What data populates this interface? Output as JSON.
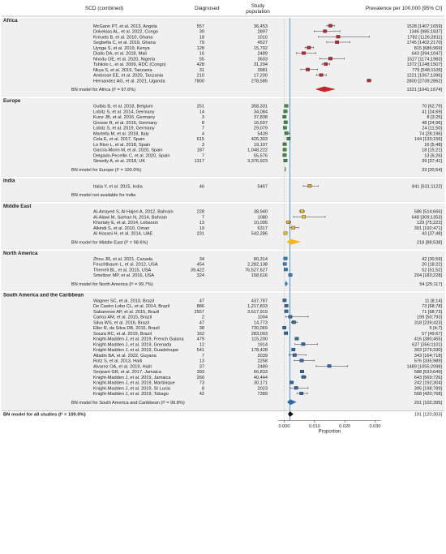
{
  "header": {
    "col_study": "SCD (combined)",
    "col_diagnosed": "Diagnosed",
    "col_population": "Study population",
    "col_prevalence": "Prevalence per 100,000 [95% CI]"
  },
  "colors": {
    "Africa": "#c0272d",
    "Europe": "#3a8f3a",
    "India": "#e39b2d",
    "Middle East": "#f2b61d",
    "North America": "#2e7fc0",
    "South America and the Caribbean": "#2b6aa8",
    "overall": "#111111",
    "reference_line": "#3b8fd9",
    "shade": "#f0f0f0"
  },
  "chart_data": {
    "type": "forest",
    "xlabel": "Proportion",
    "xlim": [
      -0.002,
      0.032
    ],
    "xticks": [
      0.0,
      0.01,
      0.02,
      0.03
    ],
    "xtick_labels": [
      "0.000",
      "0.010",
      "0.020",
      "0.030"
    ],
    "reference_value": 0.00191,
    "groups": [
      {
        "name": "Africa",
        "studies": [
          {
            "label": "McGann PT, et al. 2013, Angola",
            "diagnosed": "557",
            "population": "36,453",
            "prev": 1528,
            "lo": 1407,
            "hi": 1659,
            "text": "1528 [1407;1659]"
          },
          {
            "label": "Dokekias AL, et al. 2022, Congo",
            "diagnosed": "39",
            "population": "2897",
            "prev": 1346,
            "lo": 985,
            "hi": 1837,
            "text": "1346 [985;1837]"
          },
          {
            "label": "Kreuels B, et al. 2010, Ghana",
            "diagnosed": "18",
            "population": "1010",
            "prev": 1782,
            "lo": 1126,
            "hi": 2811,
            "text": "1782 [1126;2811]"
          },
          {
            "label": "Segbefia C, et al. 2019, Ghana",
            "diagnosed": "79",
            "population": "4527",
            "prev": 1745,
            "lo": 1402,
            "hi": 2170,
            "text": "1745 [1402;2170]"
          },
          {
            "label": "Uyoga S, et al. 2019, Kenya",
            "diagnosed": "128",
            "population": "15,702",
            "prev": 815,
            "lo": 686,
            "hi": 969,
            "text": "815 [686;969]"
          },
          {
            "label": "Diallo DA, et al. 2018, Mali",
            "diagnosed": "16",
            "population": "2489",
            "prev": 643,
            "lo": 394,
            "hi": 1047,
            "text": "643 [394;1047]"
          },
          {
            "label": "Nnodu OE, et al. 2020, Nigeria",
            "diagnosed": "55",
            "population": "3603",
            "prev": 1527,
            "lo": 1174,
            "hi": 1983,
            "text": "1527 [1174;1983]"
          },
          {
            "label": "Tshilolo L, et al. 2009, RDC (Congo)",
            "diagnosed": "428",
            "population": "31,204",
            "prev": 1372,
            "lo": 1248,
            "hi": 1507,
            "text": "1372 [1248;1507]"
          },
          {
            "label": "Nkya S, et al. 2019, Tanzania",
            "diagnosed": "31",
            "population": "3981",
            "prev": 779,
            "lo": 548,
            "hi": 1105,
            "text": "779 [548;1105]"
          },
          {
            "label": "Ambrose EE, et al. 2020, Tanzania",
            "diagnosed": "210",
            "population": "17,200",
            "prev": 1221,
            "lo": 1067,
            "hi": 1396,
            "text": "1221 [1067;1396]"
          },
          {
            "label": "Hernandez AG, et al. 2021, Uganda",
            "diagnosed": "7800",
            "population": "278,585",
            "prev": 2800,
            "lo": 2739,
            "hi": 2862,
            "text": "2800 [2739;2862]"
          }
        ],
        "summary": {
          "label": "BN model for Africa (I² = 97.6%)",
          "prev": 1321,
          "lo": 1041,
          "hi": 1674,
          "text": "1321 [1041;1674]"
        }
      },
      {
        "name": "Europe",
        "studies": [
          {
            "label": "Gulbis B, et al. 2018, Belgium",
            "diagnosed": "251",
            "population": "358,331",
            "prev": 70,
            "lo": 62,
            "hi": 79,
            "text": "70 [62;79]"
          },
          {
            "label": "Lobitz S, et al. 2014, Germany",
            "diagnosed": "14",
            "population": "34,084",
            "prev": 41,
            "lo": 24,
            "hi": 69,
            "text": "41 [24;69]"
          },
          {
            "label": "Kunz JB, et al. 2016, Germany",
            "diagnosed": "3",
            "population": "37,838",
            "prev": 8,
            "lo": 3,
            "hi": 25,
            "text": "8 [3;25]"
          },
          {
            "label": "Grosse R, et al. 2016, Germany",
            "diagnosed": "8",
            "population": "16,697",
            "prev": 48,
            "lo": 24,
            "hi": 96,
            "text": "48 [24;96]"
          },
          {
            "label": "Lobitz S, et al. 2019, Germany",
            "diagnosed": "7",
            "population": "29,079",
            "prev": 24,
            "lo": 11,
            "hi": 50,
            "text": "24 [11;50]"
          },
          {
            "label": "Martella M, et al. 2018, Italy",
            "diagnosed": "4",
            "population": "5439",
            "prev": 74,
            "lo": 28,
            "hi": 196,
            "text": "74 [28;196]"
          },
          {
            "label": "Cela E, et al. 2017, Spain",
            "diagnosed": "615",
            "population": "426,303",
            "prev": 144,
            "lo": 133,
            "hi": 156,
            "text": "144 [133;156]"
          },
          {
            "label": "Lo Riso L, et al. 2018, Spain",
            "diagnosed": "3",
            "population": "19,197",
            "prev": 16,
            "lo": 5,
            "hi": 48,
            "text": "16 [5;48]"
          },
          {
            "label": "García-Morin M, et al. 2020, Spain",
            "diagnosed": "187",
            "population": "1,048,222",
            "prev": 18,
            "lo": 15,
            "hi": 21,
            "text": "18 [15;21]"
          },
          {
            "label": "Delgado-Pecellin C, et al. 2020, Spain",
            "diagnosed": "7",
            "population": "55,576",
            "prev": 13,
            "lo": 6,
            "hi": 26,
            "text": "13 [6;26]"
          },
          {
            "label": "Streetly A, et al. 2018, UK",
            "diagnosed": "1317",
            "population": "3,376,923",
            "prev": 39,
            "lo": 37,
            "hi": 41,
            "text": "39 [37;41]"
          }
        ],
        "summary": {
          "label": "BN model for Europe (I² = 100.0%)",
          "prev": 33,
          "lo": 20,
          "hi": 54,
          "text": "33 [20;54]"
        }
      },
      {
        "name": "India",
        "studies": [
          {
            "label": "Italia Y, et al. 2015, India",
            "diagnosed": "46",
            "population": "5467",
            "prev": 841,
            "lo": 631,
            "hi": 1122,
            "text": "841 [631;1122]"
          }
        ],
        "summary": {
          "label": "BN model not available for India",
          "prev": null,
          "lo": null,
          "hi": null,
          "text": ""
        }
      },
      {
        "name": "Middle East",
        "studies": [
          {
            "label": "Al-Arrayed S, Al Hajeri A, 2012, Bahrain",
            "diagnosed": "228",
            "population": "38,940",
            "prev": 586,
            "lo": 514,
            "hi": 666,
            "text": "586 [514;666]"
          },
          {
            "label": "Al-Alawi M, Sarhan N, 2014, Bahrain",
            "diagnosed": "7",
            "population": "1080",
            "prev": 648,
            "lo": 309,
            "hi": 1353,
            "text": "648 [309;1353]"
          },
          {
            "label": "Khoriaty E, et al. 2014, Lebanon",
            "diagnosed": "13",
            "population": "10,095",
            "prev": 129,
            "lo": 75,
            "hi": 222,
            "text": "129 [75;222]"
          },
          {
            "label": "Alkindi S, et al. 2010, Oman",
            "diagnosed": "19",
            "population": "6317",
            "prev": 301,
            "lo": 192,
            "hi": 471,
            "text": "301 [192;471]"
          },
          {
            "label": "Al Hosani H, et al. 2014, UAE",
            "diagnosed": "231",
            "population": "542,286",
            "prev": 43,
            "lo": 37,
            "hi": 48,
            "text": "43 [37;48]"
          }
        ],
        "summary": {
          "label": "BN model for Middle East (I² = 98.6%)",
          "prev": 218,
          "lo": 88,
          "hi": 538,
          "text": "218 [88;538]"
        }
      },
      {
        "name": "North America",
        "studies": [
          {
            "label": "Zhou JR, et al. 2021, Canada",
            "diagnosed": "34",
            "population": "80,314",
            "prev": 42,
            "lo": 30,
            "hi": 59,
            "text": "42 [30;59]"
          },
          {
            "label": "Feuchtbaum L, et al. 2012, USA",
            "diagnosed": "454",
            "population": "2,282,138",
            "prev": 20,
            "lo": 18,
            "hi": 22,
            "text": "20 [18;22]"
          },
          {
            "label": "Therrell BL, et al. 2015, USA",
            "diagnosed": "39,422",
            "population": "76,527,627",
            "prev": 52,
            "lo": 51,
            "hi": 52,
            "text": "52 [51;52]"
          },
          {
            "label": "Smeltzer MP, et al. 2016, USA",
            "diagnosed": "324",
            "population": "158,616",
            "prev": 204,
            "lo": 183,
            "hi": 228,
            "text": "204 [183;228]"
          }
        ],
        "summary": {
          "label": "BN model for North America (I² = 99.7%)",
          "prev": 54,
          "lo": 25,
          "hi": 117,
          "text": "54 [25;117]"
        }
      },
      {
        "name": "South America and the Caribbean",
        "studies": [
          {
            "label": "Wagner SC, et al. 2010, Brazil",
            "diagnosed": "47",
            "population": "437,787",
            "prev": 11,
            "lo": 8,
            "hi": 14,
            "text": "11 [8;14]"
          },
          {
            "label": "De Castro Lobo CL, et al. 2014, Brazil",
            "diagnosed": "886",
            "population": "1,217,833",
            "prev": 73,
            "lo": 68,
            "hi": 78,
            "text": "73 [68;78]"
          },
          {
            "label": "Sabarense AP, et al. 2015, Brazil",
            "diagnosed": "2557",
            "population": "3,617,919",
            "prev": 71,
            "lo": 68,
            "hi": 73,
            "text": "71 [68;73]"
          },
          {
            "label": "Carlos AM, et al. 2015, Brazil",
            "diagnosed": "2",
            "population": "1004",
            "prev": 199,
            "lo": 50,
            "hi": 793,
            "text": "199 [50;793]"
          },
          {
            "label": "Silva WS, et al. 2016, Brazil",
            "diagnosed": "47",
            "population": "14,773",
            "prev": 318,
            "lo": 239,
            "hi": 423,
            "text": "318 [239;423]"
          },
          {
            "label": "Eller R, da Silva DB, 2016, Brazil",
            "diagnosed": "38",
            "population": "730,069",
            "prev": 5,
            "lo": 4,
            "hi": 7,
            "text": "5 [4;7]"
          },
          {
            "label": "Souza RC, et al. 2019, Brazil",
            "diagnosed": "162",
            "population": "283,003",
            "prev": 57,
            "lo": 49,
            "hi": 67,
            "text": "57 [49;67]"
          },
          {
            "label": "Knight-Madden J, et al. 2019, French Guiana",
            "diagnosed": "479",
            "population": "115,200",
            "prev": 416,
            "lo": 380,
            "hi": 455,
            "text": "416 [380;455]"
          },
          {
            "label": "Knight-Madden J, et al. 2019, Grenada",
            "diagnosed": "12",
            "population": "1914",
            "prev": 627,
            "lo": 356,
            "hi": 1101,
            "text": "627 [356;1101]"
          },
          {
            "label": "Knight-Madden J, et al. 2019, Guadeloupe",
            "diagnosed": "541",
            "population": "178,428",
            "prev": 303,
            "lo": 279,
            "hi": 330,
            "text": "303 [279;330]"
          },
          {
            "label": "Alladin BA, et al. 2022, Guyana",
            "diagnosed": "7",
            "population": "2039",
            "prev": 343,
            "lo": 164,
            "hi": 718,
            "text": "343 [164;718]"
          },
          {
            "label": "Rotz S, et al. 2013, Haiti",
            "diagnosed": "13",
            "population": "2258",
            "prev": 576,
            "lo": 335,
            "hi": 989,
            "text": "576 [335;989]"
          },
          {
            "label": "Alvarez OA, et al. 2019, Haiti",
            "diagnosed": "37",
            "population": "2489",
            "prev": 1489,
            "lo": 1055,
            "hi": 2098,
            "text": "1489 [1055;2098]"
          },
          {
            "label": "Serjeant GR, et al. 2017, Jamaica",
            "diagnosed": "393",
            "population": "66,833",
            "prev": 588,
            "lo": 533,
            "hi": 649,
            "text": "588 [533;649]"
          },
          {
            "label": "Knight-Madden J, et al. 2019, Jamaica",
            "diagnosed": "260",
            "population": "40,444",
            "prev": 643,
            "lo": 569,
            "hi": 726,
            "text": "643 [569;726]"
          },
          {
            "label": "Knight-Madden J, et al. 2019, Martinique",
            "diagnosed": "73",
            "population": "30,171",
            "prev": 242,
            "lo": 192,
            "hi": 304,
            "text": "242 [192;304]"
          },
          {
            "label": "Knight-Madden J, et al. 2019, St Lucia",
            "diagnosed": "8",
            "population": "2023",
            "prev": 395,
            "lo": 198,
            "hi": 789,
            "text": "395 [198;789]"
          },
          {
            "label": "Knight-Madden J, et al. 2019, Tobago",
            "diagnosed": "42",
            "population": "7389",
            "prev": 568,
            "lo": 420,
            "hi": 768,
            "text": "568 [420;768]"
          }
        ],
        "summary": {
          "label": "BN model for South America and Caribbean (I² = 99.8%)",
          "prev": 201,
          "lo": 102,
          "hi": 395,
          "text": "201 [102;395]"
        }
      }
    ],
    "overall": {
      "label": "BN model for all studies (I² = 100.0%)",
      "prev": 191,
      "lo": 120,
      "hi": 303,
      "text": "191 [120;303]"
    }
  }
}
